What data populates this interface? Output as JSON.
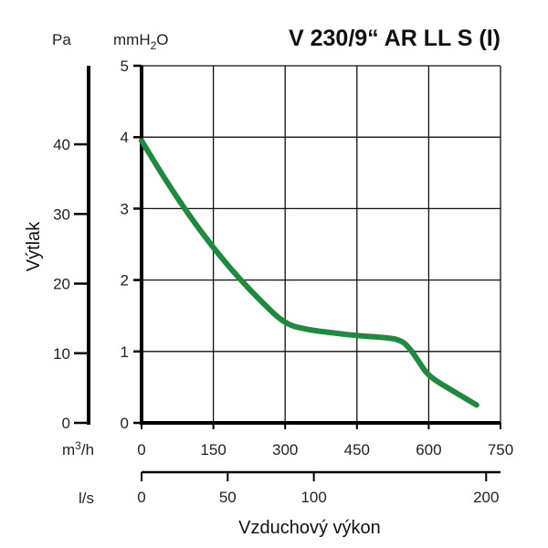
{
  "chart_data": {
    "type": "line",
    "title": "V 230/9“ AR LL S (I)",
    "ylabel": "Výtlak",
    "xlabel": "Vzduchový výkon",
    "y_units": {
      "pa": "Pa",
      "mmh2o": "mmH2O"
    },
    "x_units": {
      "m3h": "m3/h",
      "ls": "l/s"
    },
    "y_pa_ticks": [
      "0",
      "10",
      "20",
      "30",
      "40"
    ],
    "y_mmh2o_ticks": [
      "0",
      "1",
      "2",
      "3",
      "4",
      "5"
    ],
    "x_m3h_ticks": [
      "0",
      "150",
      "300",
      "450",
      "600",
      "750"
    ],
    "x_ls_ticks": [
      "0",
      "50",
      "100",
      "200"
    ],
    "xlim": [
      0,
      750
    ],
    "ylim": [
      0,
      5
    ],
    "grid": true,
    "line_color": "#1e8a3e",
    "series": [
      {
        "x": [
          0,
          50,
          100,
          150,
          200,
          250,
          300,
          350,
          400,
          450,
          500,
          540,
          560,
          580,
          600,
          650,
          700
        ],
        "y": [
          3.95,
          3.4,
          2.9,
          2.45,
          2.05,
          1.7,
          1.38,
          1.3,
          1.26,
          1.22,
          1.2,
          1.17,
          1.05,
          0.85,
          0.65,
          0.45,
          0.25
        ]
      }
    ]
  }
}
